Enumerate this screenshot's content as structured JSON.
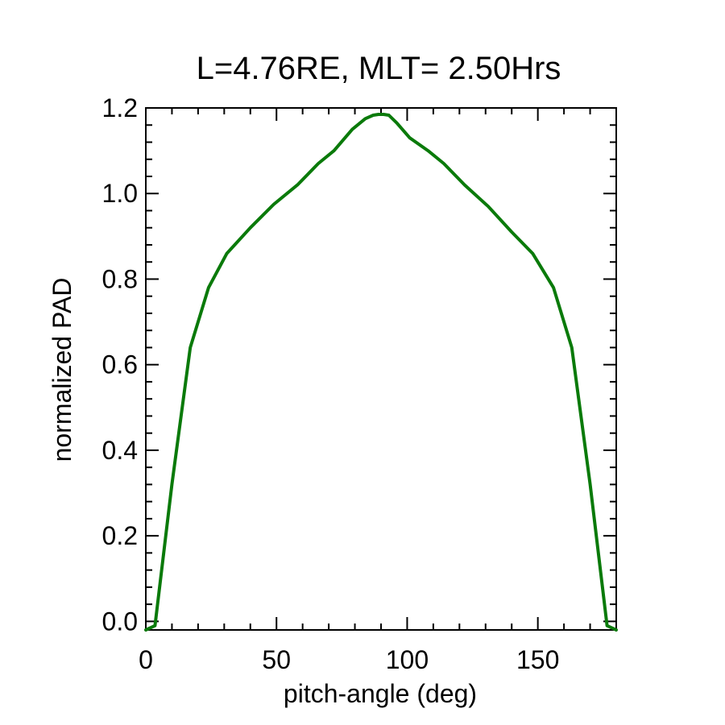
{
  "chart_data": {
    "type": "line",
    "title": "L=4.76RE, MLT= 2.50Hrs",
    "xlabel": "pitch-angle (deg)",
    "ylabel": "normalized PAD",
    "xlim": [
      0,
      180
    ],
    "ylim": [
      -0.02,
      1.2
    ],
    "x_ticks": [
      0,
      50,
      100,
      150
    ],
    "x_tick_labels": [
      "0",
      "50",
      "100",
      "150"
    ],
    "y_ticks": [
      0.0,
      0.2,
      0.4,
      0.6,
      0.8,
      1.0,
      1.2
    ],
    "y_tick_labels": [
      "0.0",
      "0.2",
      "0.4",
      "0.6",
      "0.8",
      "1.0",
      "1.2"
    ],
    "grid": false,
    "series": [
      {
        "color": "#0a7a0a",
        "x": [
          0,
          3.5,
          10,
          17,
          24,
          31,
          40,
          49,
          58,
          66,
          72,
          79,
          84,
          87,
          89,
          91,
          93,
          96,
          101,
          108,
          114,
          122,
          131,
          140,
          148,
          156,
          163,
          170,
          176.5,
          180
        ],
        "y": [
          -0.02,
          -0.01,
          0.32,
          0.64,
          0.78,
          0.86,
          0.92,
          0.975,
          1.02,
          1.07,
          1.1,
          1.15,
          1.175,
          1.183,
          1.185,
          1.185,
          1.183,
          1.165,
          1.13,
          1.1,
          1.07,
          1.02,
          0.97,
          0.91,
          0.86,
          0.78,
          0.64,
          0.32,
          -0.01,
          -0.02
        ]
      }
    ]
  }
}
